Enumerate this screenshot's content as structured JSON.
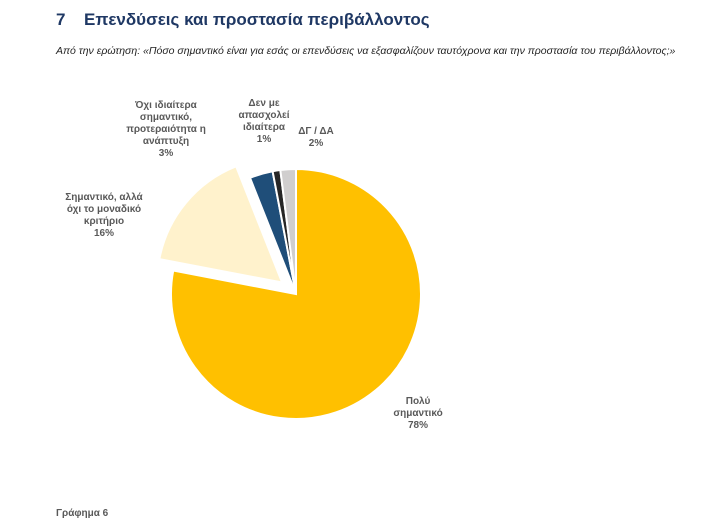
{
  "heading": {
    "number": "7",
    "title": "Επενδύσεις και προστασία περιβάλλοντος"
  },
  "question": "Από την ερώτηση: «Πόσο σημαντικό είναι για εσάς οι επενδύσεις να εξασφαλίζουν ταυτόχρονα και την προστασία του περιβάλλοντος;»",
  "footer": "Γράφημα 6",
  "chart_data": {
    "type": "pie",
    "slices": [
      {
        "label": [
          "Πολύ",
          "σημαντικό"
        ],
        "value": 78,
        "value_label": "78%",
        "color": "#ffc000",
        "exploded": false
      },
      {
        "label": [
          "Σημαντικό, αλλά",
          "όχι το μοναδικό",
          "κριτήριο"
        ],
        "value": 16,
        "value_label": "16%",
        "color": "#fff2cc",
        "exploded": true
      },
      {
        "label": [
          "Όχι ιδιαίτερα",
          "σημαντικό,",
          "προτεραιότητα η",
          "ανάπτυξη"
        ],
        "value": 3,
        "value_label": "3%",
        "color": "#1f4e79",
        "exploded": false
      },
      {
        "label": [
          "Δεν με",
          "απασχολεί",
          "ιδιαίτερα"
        ],
        "value": 1,
        "value_label": "1%",
        "color": "#262626",
        "exploded": false
      },
      {
        "label": [
          "ΔΓ / ΔΑ"
        ],
        "value": 2,
        "value_label": "2%",
        "color": "#d0cece",
        "exploded": false
      }
    ]
  }
}
